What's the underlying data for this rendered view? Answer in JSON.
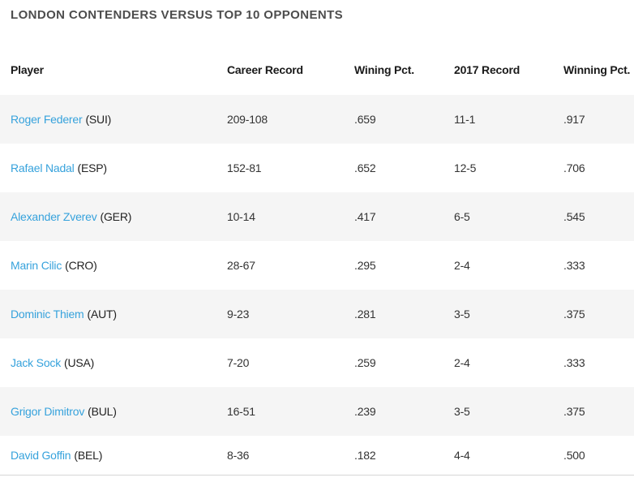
{
  "page": {
    "title": "LONDON CONTENDERS VERSUS TOP 10 OPPONENTS"
  },
  "colors": {
    "stripe": "#f5f5f5",
    "link_blue": "#36a2dc",
    "title_gray": "#4d4d4d",
    "cell_text": "#333333",
    "header_text": "#1a1a1a",
    "border_gray": "#d6d6d6"
  },
  "table": {
    "columns": [
      "Player",
      "Career Record",
      "Wining Pct.",
      "2017 Record",
      "Winning Pct."
    ],
    "rows": [
      {
        "player": "Roger Federer",
        "country": "(SUI)",
        "career_record": "209-108",
        "career_pct": ".659",
        "record_2017": "11-1",
        "pct_2017": ".917"
      },
      {
        "player": "Rafael Nadal",
        "country": "(ESP)",
        "career_record": "152-81",
        "career_pct": ".652",
        "record_2017": "12-5",
        "pct_2017": ".706"
      },
      {
        "player": "Alexander Zverev",
        "country": "(GER)",
        "career_record": "10-14",
        "career_pct": ".417",
        "record_2017": "6-5",
        "pct_2017": ".545"
      },
      {
        "player": "Marin Cilic",
        "country": "(CRO)",
        "career_record": "28-67",
        "career_pct": ".295",
        "record_2017": "2-4",
        "pct_2017": ".333"
      },
      {
        "player": "Dominic Thiem",
        "country": "(AUT)",
        "career_record": "9-23",
        "career_pct": ".281",
        "record_2017": "3-5",
        "pct_2017": ".375"
      },
      {
        "player": "Jack Sock",
        "country": "(USA)",
        "career_record": "7-20",
        "career_pct": ".259",
        "record_2017": "2-4",
        "pct_2017": ".333"
      },
      {
        "player": "Grigor Dimitrov",
        "country": "(BUL)",
        "career_record": "16-51",
        "career_pct": ".239",
        "record_2017": "3-5",
        "pct_2017": ".375"
      },
      {
        "player": "David Goffin",
        "country": "(BEL)",
        "career_record": "8-36",
        "career_pct": ".182",
        "record_2017": "4-4",
        "pct_2017": ".500"
      }
    ]
  },
  "chart_data": {
    "type": "table",
    "title": "LONDON CONTENDERS VERSUS TOP 10 OPPONENTS",
    "columns": [
      "Player",
      "Career Record",
      "Wining Pct.",
      "2017 Record",
      "Winning Pct."
    ],
    "rows": [
      [
        "Roger Federer (SUI)",
        "209-108",
        ".659",
        "11-1",
        ".917"
      ],
      [
        "Rafael Nadal (ESP)",
        "152-81",
        ".652",
        "12-5",
        ".706"
      ],
      [
        "Alexander Zverev (GER)",
        "10-14",
        ".417",
        "6-5",
        ".545"
      ],
      [
        "Marin Cilic (CRO)",
        "28-67",
        ".295",
        "2-4",
        ".333"
      ],
      [
        "Dominic Thiem (AUT)",
        "9-23",
        ".281",
        "3-5",
        ".375"
      ],
      [
        "Jack Sock (USA)",
        "7-20",
        ".259",
        "2-4",
        ".333"
      ],
      [
        "Grigor Dimitrov (BUL)",
        "16-51",
        ".239",
        "3-5",
        ".375"
      ],
      [
        "David Goffin (BEL)",
        "8-36",
        ".182",
        "4-4",
        ".500"
      ]
    ],
    "layout": {
      "striped": true,
      "stripe_color": "#f5f5f5",
      "first_data_row_striped": true,
      "player_names_are_links": true
    }
  }
}
